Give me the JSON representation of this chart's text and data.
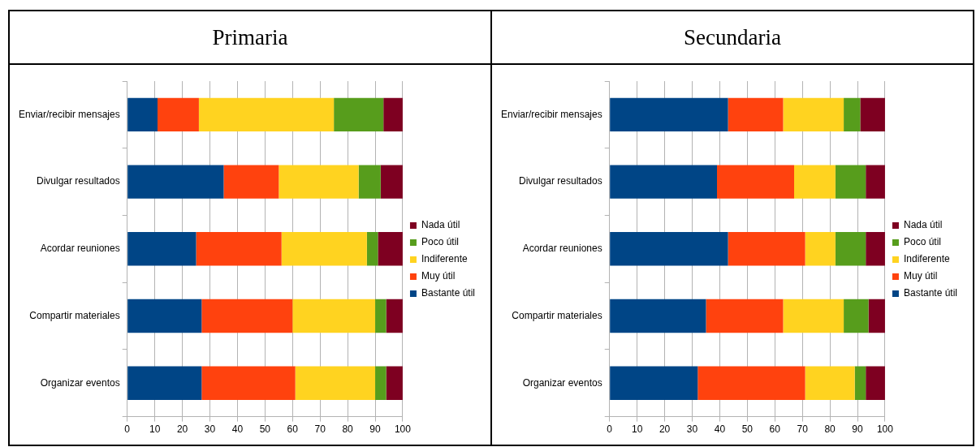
{
  "chart_data": [
    {
      "type": "bar",
      "title": "Primaria",
      "orientation": "horizontal",
      "stacked": true,
      "categories": [
        "Enviar/recibir mensajes",
        "Divulgar resultados",
        "Acordar reuniones",
        "Compartir materiales",
        "Organizar eventos"
      ],
      "series": [
        {
          "name": "Bastante útil",
          "color": "#004586",
          "values": [
            11,
            35,
            25,
            27,
            27
          ]
        },
        {
          "name": "Muy útil",
          "color": "#ff420e",
          "values": [
            15,
            20,
            31,
            33,
            34
          ]
        },
        {
          "name": "Indiferente",
          "color": "#ffd320",
          "values": [
            49,
            29,
            31,
            30,
            29
          ]
        },
        {
          "name": "Poco útil",
          "color": "#579d1c",
          "values": [
            18,
            8,
            4,
            4,
            4
          ]
        },
        {
          "name": "Nada útil",
          "color": "#7e0021",
          "values": [
            7,
            8,
            9,
            6,
            6
          ]
        }
      ],
      "xlim": [
        0,
        100
      ],
      "xticks": [
        0,
        10,
        20,
        30,
        40,
        50,
        60,
        70,
        80,
        90,
        100
      ],
      "grid": "x",
      "legend": "right"
    },
    {
      "type": "bar",
      "title": "Secundaria",
      "orientation": "horizontal",
      "stacked": true,
      "categories": [
        "Enviar/recibir mensajes",
        "Divulgar resultados",
        "Acordar reuniones",
        "Compartir materiales",
        "Organizar eventos"
      ],
      "series": [
        {
          "name": "Bastante útil",
          "color": "#004586",
          "values": [
            43,
            39,
            43,
            35,
            32
          ]
        },
        {
          "name": "Muy útil",
          "color": "#ff420e",
          "values": [
            20,
            28,
            28,
            28,
            39
          ]
        },
        {
          "name": "Indiferente",
          "color": "#ffd320",
          "values": [
            22,
            15,
            11,
            22,
            18
          ]
        },
        {
          "name": "Poco útil",
          "color": "#579d1c",
          "values": [
            6,
            11,
            11,
            9,
            4
          ]
        },
        {
          "name": "Nada útil",
          "color": "#7e0021",
          "values": [
            9,
            7,
            7,
            6,
            7
          ]
        }
      ],
      "xlim": [
        0,
        100
      ],
      "xticks": [
        0,
        10,
        20,
        30,
        40,
        50,
        60,
        70,
        80,
        90,
        100
      ],
      "grid": "x",
      "legend": "right"
    }
  ]
}
